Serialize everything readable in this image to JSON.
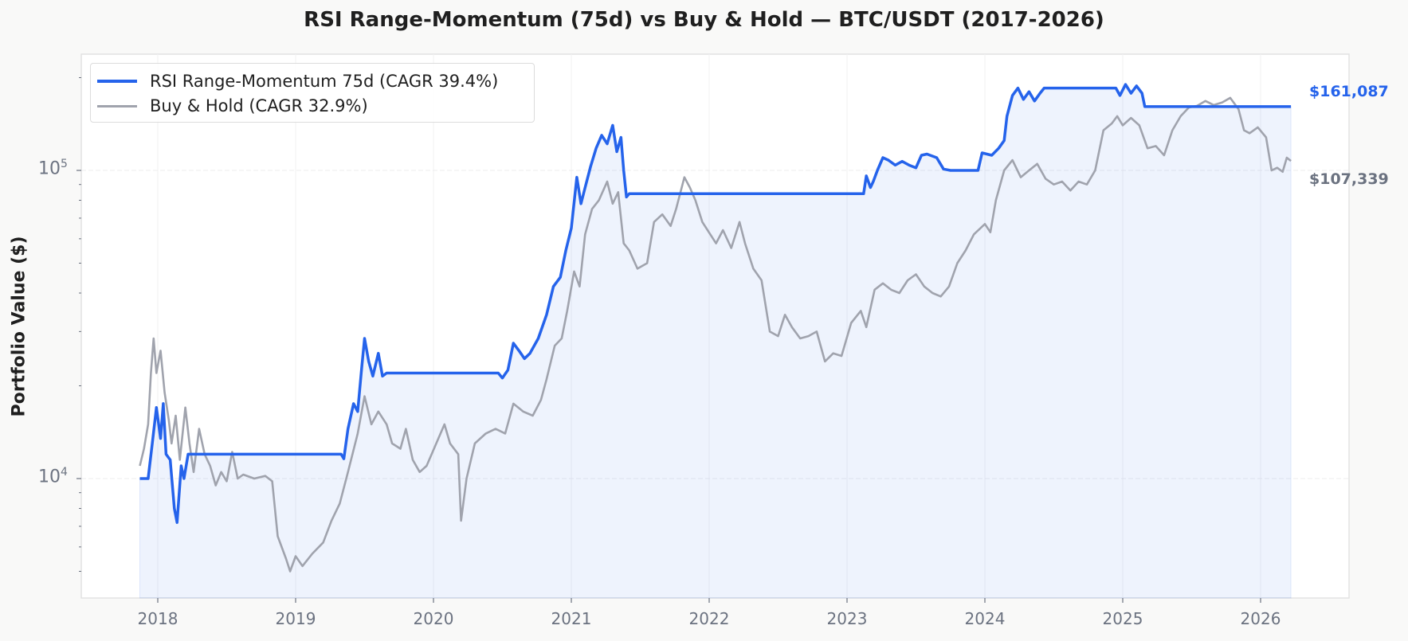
{
  "chart_data": {
    "type": "line",
    "title": "RSI Range-Momentum (75d) vs Buy & Hold — BTC/USDT (2017-2026)",
    "xlabel": "",
    "ylabel": "Portfolio Value ($)",
    "yscale": "log",
    "ylim": [
      4200,
      210000
    ],
    "xlim": [
      2017.45,
      2026.6
    ],
    "x_ticks": [
      "2018",
      "2019",
      "2020",
      "2021",
      "2022",
      "2023",
      "2024",
      "2025",
      "2026"
    ],
    "y_ticks": [
      {
        "base": "10",
        "exp": "4",
        "value": 10000
      },
      {
        "base": "10",
        "exp": "5",
        "value": 100000
      }
    ],
    "grid": true,
    "legend_position": "upper left",
    "series": [
      {
        "name": "RSI Range-Momentum 75d (CAGR 39.4%)",
        "color": "#2563eb",
        "final_value": 161087,
        "final_label": "$161,087",
        "points": [
          [
            2017.87,
            10000
          ],
          [
            2017.93,
            10000
          ],
          [
            2017.96,
            13000
          ],
          [
            2017.99,
            17000
          ],
          [
            2018.02,
            13500
          ],
          [
            2018.04,
            17500
          ],
          [
            2018.06,
            12000
          ],
          [
            2018.09,
            11500
          ],
          [
            2018.12,
            8000
          ],
          [
            2018.14,
            7200
          ],
          [
            2018.17,
            11000
          ],
          [
            2018.19,
            10000
          ],
          [
            2018.22,
            12000
          ],
          [
            2019.33,
            12000
          ],
          [
            2019.35,
            11600
          ],
          [
            2019.38,
            14500
          ],
          [
            2019.42,
            17500
          ],
          [
            2019.45,
            16500
          ],
          [
            2019.48,
            23000
          ],
          [
            2019.5,
            28500
          ],
          [
            2019.53,
            24000
          ],
          [
            2019.56,
            21500
          ],
          [
            2019.6,
            25500
          ],
          [
            2019.63,
            21500
          ],
          [
            2019.66,
            22000
          ],
          [
            2020.47,
            22000
          ],
          [
            2020.5,
            21200
          ],
          [
            2020.54,
            22500
          ],
          [
            2020.58,
            27500
          ],
          [
            2020.62,
            26000
          ],
          [
            2020.66,
            24500
          ],
          [
            2020.7,
            25500
          ],
          [
            2020.76,
            28500
          ],
          [
            2020.82,
            34000
          ],
          [
            2020.87,
            42000
          ],
          [
            2020.92,
            45000
          ],
          [
            2020.96,
            55000
          ],
          [
            2021.0,
            65000
          ],
          [
            2021.04,
            95000
          ],
          [
            2021.07,
            78000
          ],
          [
            2021.1,
            88000
          ],
          [
            2021.14,
            103000
          ],
          [
            2021.18,
            118000
          ],
          [
            2021.22,
            130000
          ],
          [
            2021.26,
            122000
          ],
          [
            2021.3,
            140000
          ],
          [
            2021.33,
            115000
          ],
          [
            2021.36,
            128000
          ],
          [
            2021.38,
            100000
          ],
          [
            2021.4,
            82000
          ],
          [
            2021.42,
            84000
          ],
          [
            2023.12,
            84000
          ],
          [
            2023.14,
            96000
          ],
          [
            2023.17,
            88000
          ],
          [
            2023.19,
            92000
          ],
          [
            2023.22,
            100000
          ],
          [
            2023.26,
            110000
          ],
          [
            2023.3,
            108000
          ],
          [
            2023.35,
            104000
          ],
          [
            2023.4,
            107000
          ],
          [
            2023.45,
            104000
          ],
          [
            2023.5,
            102000
          ],
          [
            2023.54,
            112000
          ],
          [
            2023.58,
            113000
          ],
          [
            2023.65,
            110000
          ],
          [
            2023.7,
            101000
          ],
          [
            2023.75,
            100000
          ],
          [
            2023.95,
            100000
          ],
          [
            2023.98,
            114000
          ],
          [
            2024.05,
            112000
          ],
          [
            2024.1,
            118000
          ],
          [
            2024.14,
            125000
          ],
          [
            2024.16,
            150000
          ],
          [
            2024.2,
            175000
          ],
          [
            2024.24,
            185000
          ],
          [
            2024.28,
            170000
          ],
          [
            2024.32,
            180000
          ],
          [
            2024.36,
            168000
          ],
          [
            2024.4,
            178000
          ],
          [
            2024.43,
            185000
          ],
          [
            2024.95,
            185000
          ],
          [
            2024.98,
            175000
          ],
          [
            2025.02,
            190000
          ],
          [
            2025.06,
            178000
          ],
          [
            2025.1,
            188000
          ],
          [
            2025.14,
            178000
          ],
          [
            2025.16,
            161087
          ],
          [
            2026.22,
            161087
          ]
        ]
      },
      {
        "name": "Buy & Hold (CAGR 32.9%)",
        "color": "#a0a3ad",
        "final_value": 107339,
        "final_label": "$107,339",
        "points": [
          [
            2017.87,
            11000
          ],
          [
            2017.9,
            12500
          ],
          [
            2017.93,
            15000
          ],
          [
            2017.95,
            22000
          ],
          [
            2017.97,
            28500
          ],
          [
            2017.99,
            22000
          ],
          [
            2018.02,
            26000
          ],
          [
            2018.05,
            19000
          ],
          [
            2018.08,
            15500
          ],
          [
            2018.1,
            13000
          ],
          [
            2018.13,
            16000
          ],
          [
            2018.16,
            11500
          ],
          [
            2018.2,
            17000
          ],
          [
            2018.23,
            13000
          ],
          [
            2018.26,
            10500
          ],
          [
            2018.3,
            14500
          ],
          [
            2018.34,
            12000
          ],
          [
            2018.38,
            11000
          ],
          [
            2018.42,
            9500
          ],
          [
            2018.46,
            10500
          ],
          [
            2018.5,
            9800
          ],
          [
            2018.54,
            12200
          ],
          [
            2018.58,
            10000
          ],
          [
            2018.62,
            10300
          ],
          [
            2018.7,
            10000
          ],
          [
            2018.78,
            10200
          ],
          [
            2018.83,
            9800
          ],
          [
            2018.87,
            6500
          ],
          [
            2018.93,
            5500
          ],
          [
            2018.96,
            5000
          ],
          [
            2019.0,
            5600
          ],
          [
            2019.05,
            5200
          ],
          [
            2019.12,
            5700
          ],
          [
            2019.2,
            6200
          ],
          [
            2019.26,
            7300
          ],
          [
            2019.32,
            8300
          ],
          [
            2019.38,
            10500
          ],
          [
            2019.45,
            14000
          ],
          [
            2019.5,
            18500
          ],
          [
            2019.55,
            15000
          ],
          [
            2019.6,
            16500
          ],
          [
            2019.66,
            15000
          ],
          [
            2019.7,
            13000
          ],
          [
            2019.76,
            12500
          ],
          [
            2019.8,
            14500
          ],
          [
            2019.85,
            11500
          ],
          [
            2019.9,
            10500
          ],
          [
            2019.95,
            11000
          ],
          [
            2020.02,
            13000
          ],
          [
            2020.08,
            15000
          ],
          [
            2020.12,
            13000
          ],
          [
            2020.18,
            12000
          ],
          [
            2020.2,
            7300
          ],
          [
            2020.24,
            10000
          ],
          [
            2020.3,
            13000
          ],
          [
            2020.38,
            14000
          ],
          [
            2020.45,
            14500
          ],
          [
            2020.52,
            14000
          ],
          [
            2020.58,
            17500
          ],
          [
            2020.65,
            16500
          ],
          [
            2020.72,
            16000
          ],
          [
            2020.78,
            18000
          ],
          [
            2020.82,
            21000
          ],
          [
            2020.88,
            27000
          ],
          [
            2020.93,
            28500
          ],
          [
            2020.97,
            35000
          ],
          [
            2021.02,
            47000
          ],
          [
            2021.06,
            42000
          ],
          [
            2021.1,
            62000
          ],
          [
            2021.15,
            75000
          ],
          [
            2021.2,
            80000
          ],
          [
            2021.26,
            92000
          ],
          [
            2021.3,
            78000
          ],
          [
            2021.34,
            85000
          ],
          [
            2021.38,
            58000
          ],
          [
            2021.42,
            55000
          ],
          [
            2021.48,
            48000
          ],
          [
            2021.55,
            50000
          ],
          [
            2021.6,
            68000
          ],
          [
            2021.66,
            72000
          ],
          [
            2021.72,
            66000
          ],
          [
            2021.76,
            75000
          ],
          [
            2021.82,
            95000
          ],
          [
            2021.86,
            88000
          ],
          [
            2021.9,
            80000
          ],
          [
            2021.95,
            68000
          ],
          [
            2022.05,
            58000
          ],
          [
            2022.1,
            64000
          ],
          [
            2022.16,
            56000
          ],
          [
            2022.22,
            68000
          ],
          [
            2022.26,
            58000
          ],
          [
            2022.32,
            48000
          ],
          [
            2022.38,
            44000
          ],
          [
            2022.44,
            30000
          ],
          [
            2022.5,
            29000
          ],
          [
            2022.55,
            34000
          ],
          [
            2022.6,
            31000
          ],
          [
            2022.66,
            28500
          ],
          [
            2022.72,
            29000
          ],
          [
            2022.78,
            30000
          ],
          [
            2022.84,
            24000
          ],
          [
            2022.9,
            25500
          ],
          [
            2022.96,
            25000
          ],
          [
            2023.03,
            32000
          ],
          [
            2023.1,
            35000
          ],
          [
            2023.14,
            31000
          ],
          [
            2023.2,
            41000
          ],
          [
            2023.26,
            43000
          ],
          [
            2023.32,
            41000
          ],
          [
            2023.38,
            40000
          ],
          [
            2023.44,
            44000
          ],
          [
            2023.5,
            46000
          ],
          [
            2023.56,
            42000
          ],
          [
            2023.62,
            40000
          ],
          [
            2023.68,
            39000
          ],
          [
            2023.74,
            42000
          ],
          [
            2023.8,
            50000
          ],
          [
            2023.86,
            55000
          ],
          [
            2023.92,
            62000
          ],
          [
            2024.0,
            67000
          ],
          [
            2024.04,
            63000
          ],
          [
            2024.08,
            80000
          ],
          [
            2024.14,
            100000
          ],
          [
            2024.2,
            108000
          ],
          [
            2024.26,
            95000
          ],
          [
            2024.32,
            100000
          ],
          [
            2024.38,
            105000
          ],
          [
            2024.44,
            94000
          ],
          [
            2024.5,
            90000
          ],
          [
            2024.56,
            92000
          ],
          [
            2024.62,
            86000
          ],
          [
            2024.68,
            92000
          ],
          [
            2024.74,
            90000
          ],
          [
            2024.8,
            100000
          ],
          [
            2024.86,
            135000
          ],
          [
            2024.92,
            142000
          ],
          [
            2024.96,
            150000
          ],
          [
            2025.0,
            140000
          ],
          [
            2025.06,
            148000
          ],
          [
            2025.12,
            140000
          ],
          [
            2025.18,
            118000
          ],
          [
            2025.24,
            120000
          ],
          [
            2025.3,
            112000
          ],
          [
            2025.36,
            135000
          ],
          [
            2025.42,
            150000
          ],
          [
            2025.48,
            160000
          ],
          [
            2025.54,
            162000
          ],
          [
            2025.6,
            168000
          ],
          [
            2025.66,
            163000
          ],
          [
            2025.72,
            166000
          ],
          [
            2025.78,
            172000
          ],
          [
            2025.84,
            158000
          ],
          [
            2025.88,
            135000
          ],
          [
            2025.92,
            132000
          ],
          [
            2025.98,
            138000
          ],
          [
            2026.04,
            128000
          ],
          [
            2026.08,
            100000
          ],
          [
            2026.12,
            102000
          ],
          [
            2026.16,
            99000
          ],
          [
            2026.19,
            110000
          ],
          [
            2026.22,
            107339
          ]
        ]
      }
    ]
  }
}
